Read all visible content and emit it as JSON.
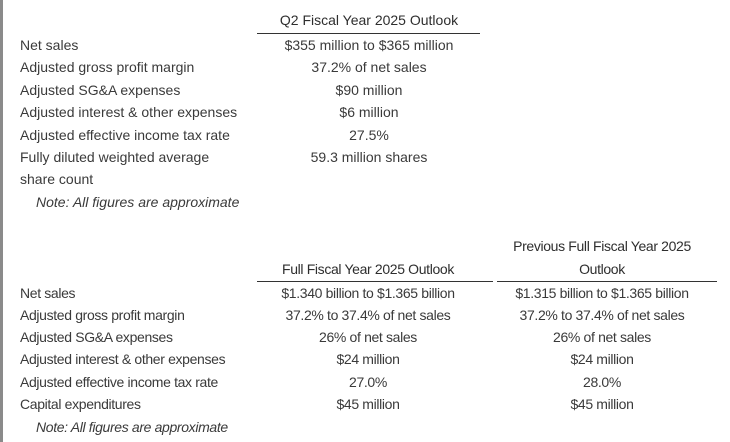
{
  "q2_table": {
    "header": "Q2 Fiscal Year 2025 Outlook",
    "rows": [
      {
        "label": "Net sales",
        "value": "$355 million to $365 million"
      },
      {
        "label": "Adjusted gross profit margin",
        "value": "37.2% of net sales"
      },
      {
        "label": "Adjusted SG&A expenses",
        "value": "$90 million"
      },
      {
        "label": "Adjusted interest & other expenses",
        "value": "$6 million"
      },
      {
        "label": "Adjusted effective income tax rate",
        "value": "27.5%"
      },
      {
        "label": "Fully diluted weighted average",
        "label2": "share count",
        "value": "59.3 million shares"
      }
    ],
    "note": "Note: All figures are approximate"
  },
  "fy_table": {
    "header_current": "Full Fiscal Year 2025 Outlook",
    "header_previous_line1": "Previous Full Fiscal Year 2025",
    "header_previous_line2": "Outlook",
    "rows": [
      {
        "label": "Net sales",
        "current": "$1.340 billion to $1.365 billion",
        "previous": "$1.315 billion to $1.365 billion"
      },
      {
        "label": "Adjusted gross profit margin",
        "current": "37.2% to 37.4% of net sales",
        "previous": "37.2% to 37.4% of net sales"
      },
      {
        "label": "Adjusted SG&A expenses",
        "current": "26% of net sales",
        "previous": "26% of net sales"
      },
      {
        "label": "Adjusted interest & other expenses",
        "current": "$24 million",
        "previous": "$24 million"
      },
      {
        "label": "Adjusted effective income tax rate",
        "current": "27.0%",
        "previous": "28.0%"
      },
      {
        "label": "Capital expenditures",
        "current": "$45 million",
        "previous": "$45 million"
      }
    ],
    "note": "Note: All figures are approximate"
  }
}
